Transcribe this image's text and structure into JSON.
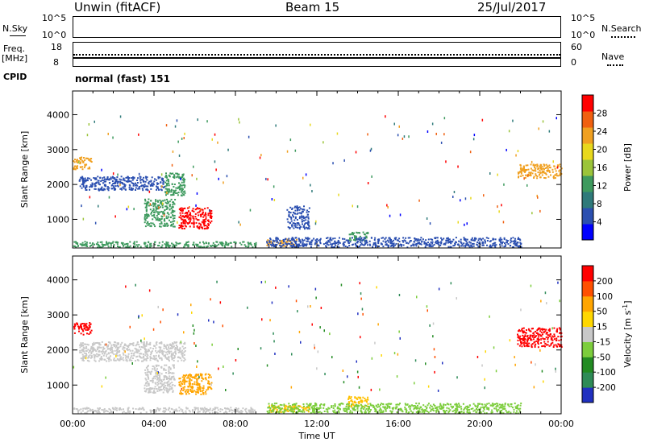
{
  "header": {
    "station": "Unwin (fitACF)",
    "beam": "Beam 15",
    "date": "25/Jul/2017"
  },
  "side_labels": {
    "nsky": "N.Sky",
    "nsky_ticks": [
      "10^5",
      "10^0"
    ],
    "nsearch": "N.Search",
    "nsearch_ticks": [
      "10^5",
      "10^0"
    ],
    "freq": "Freq.",
    "freq_unit": "[MHz]",
    "freq_ticks": [
      "18",
      "8"
    ],
    "nave": "Nave",
    "nave_ticks": [
      "60",
      "0"
    ],
    "cpid": "CPID",
    "cpid_text": "normal (fast) 151"
  },
  "chart_data": [
    {
      "type": "heatmap",
      "name": "power-panel",
      "ylabel": "Slant Range [km]",
      "yticks": [
        "4000",
        "3000",
        "2000",
        "1000"
      ],
      "ytick_values": [
        4000,
        3000,
        2000,
        1000
      ],
      "ylim": [
        180,
        4680
      ],
      "xlim_hours": [
        0,
        24
      ],
      "colorbar_label": "Power [dB]",
      "colorbar_ticks": [
        "28",
        "24",
        "20",
        "16",
        "12",
        "8",
        "4"
      ],
      "colorbar_colors": [
        "#0000ff",
        "#2b4fb0",
        "#2f7a7a",
        "#3e9a5e",
        "#9bc43a",
        "#e8d81c",
        "#f0a020",
        "#f06010",
        "#ff0000"
      ],
      "blobs": [
        {
          "t": [
            0.0,
            0.9
          ],
          "r": [
            2450,
            2800
          ],
          "c": "#f0a020"
        },
        {
          "t": [
            0.3,
            4.5
          ],
          "r": [
            1850,
            2250
          ],
          "c": "#2b4fb0"
        },
        {
          "t": [
            4.5,
            5.5
          ],
          "r": [
            1700,
            2350
          ],
          "c": "#3e9a5e"
        },
        {
          "t": [
            3.5,
            5.0
          ],
          "r": [
            800,
            1600
          ],
          "c": "#3e9a5e"
        },
        {
          "t": [
            5.2,
            6.8
          ],
          "r": [
            750,
            1350
          ],
          "c": "#ff0000"
        },
        {
          "t": [
            10.5,
            11.6
          ],
          "r": [
            750,
            1400
          ],
          "c": "#2b4fb0"
        },
        {
          "t": [
            9.5,
            11.0
          ],
          "r": [
            250,
            450
          ],
          "c": "#f0a020"
        },
        {
          "t": [
            13.5,
            14.5
          ],
          "r": [
            400,
            650
          ],
          "c": "#3e9a5e"
        },
        {
          "t": [
            9.5,
            22.0
          ],
          "r": [
            220,
            500
          ],
          "c": "#2b4fb0"
        },
        {
          "t": [
            0.0,
            9.0
          ],
          "r": [
            220,
            380
          ],
          "c": "#3e9a5e"
        },
        {
          "t": [
            21.8,
            24.0
          ],
          "r": [
            2200,
            2600
          ],
          "c": "#f0a020"
        }
      ]
    },
    {
      "type": "heatmap",
      "name": "velocity-panel",
      "ylabel": "Slant Range [km]",
      "yticks": [
        "4000",
        "3000",
        "2000",
        "1000"
      ],
      "ytick_values": [
        4000,
        3000,
        2000,
        1000
      ],
      "ylim": [
        180,
        4680
      ],
      "xlim_hours": [
        0,
        24
      ],
      "xticks": [
        "00:00",
        "04:00",
        "08:00",
        "12:00",
        "16:00",
        "20:00",
        "00:00"
      ],
      "xtick_hours": [
        0,
        4,
        8,
        12,
        16,
        20,
        24
      ],
      "xlabel": "Time UT",
      "colorbar_label": "Velocity [m s",
      "colorbar_label_sup": "-1",
      "colorbar_label_end": "]",
      "colorbar_ticks": [
        "200",
        "100",
        "50",
        "15",
        "-15",
        "-50",
        "-100",
        "-200"
      ],
      "colorbar_colors": [
        "#2030c0",
        "#2e8b57",
        "#228b22",
        "#7ccd3c",
        "#c8c8c8",
        "#ffd700",
        "#ffa500",
        "#ff5000",
        "#ff0000"
      ],
      "blobs": [
        {
          "t": [
            0.0,
            0.9
          ],
          "r": [
            2450,
            2800
          ],
          "c": "#ff0000"
        },
        {
          "t": [
            0.3,
            5.5
          ],
          "r": [
            1700,
            2250
          ],
          "c": "#c8c8c8"
        },
        {
          "t": [
            3.5,
            5.0
          ],
          "r": [
            800,
            1600
          ],
          "c": "#c8c8c8"
        },
        {
          "t": [
            5.2,
            6.8
          ],
          "r": [
            750,
            1350
          ],
          "c": "#ffa500"
        },
        {
          "t": [
            9.5,
            11.6
          ],
          "r": [
            250,
            450
          ],
          "c": "#ffc000"
        },
        {
          "t": [
            13.5,
            14.5
          ],
          "r": [
            400,
            700
          ],
          "c": "#ffc000"
        },
        {
          "t": [
            9.5,
            22.0
          ],
          "r": [
            220,
            500
          ],
          "c": "#7ccd3c"
        },
        {
          "t": [
            0.0,
            9.0
          ],
          "r": [
            220,
            380
          ],
          "c": "#c8c8c8"
        },
        {
          "t": [
            21.8,
            24.0
          ],
          "r": [
            2100,
            2650
          ],
          "c": "#ff0000"
        }
      ]
    }
  ]
}
